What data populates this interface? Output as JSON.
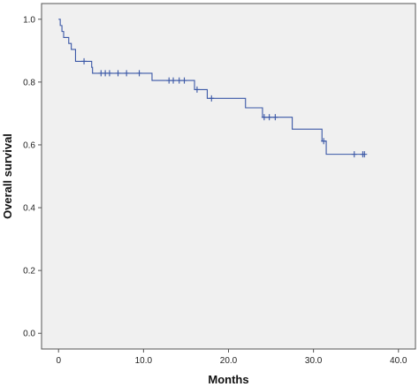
{
  "chart_data": {
    "type": "line",
    "step": true,
    "xlabel": "Months",
    "ylabel": "Overall survival",
    "xlim": [
      -2,
      42
    ],
    "ylim": [
      -0.05,
      1.05
    ],
    "xticks": [
      0,
      10,
      20,
      30,
      40
    ],
    "xtick_labels": [
      "0",
      "10.0",
      "20.0",
      "30.0",
      "40.0"
    ],
    "yticks": [
      0,
      0.2,
      0.4,
      0.6,
      0.8,
      1.0
    ],
    "ytick_labels": [
      "0.0",
      "0.2",
      "0.4",
      "0.6",
      "0.8",
      "1.0"
    ],
    "grid": false,
    "background_color": "#f0f0f0",
    "line_color": "#3a57a6",
    "series": [
      {
        "steps": [
          [
            0.0,
            1.0
          ],
          [
            0.2,
            0.98
          ],
          [
            0.4,
            0.961
          ],
          [
            0.6,
            0.942
          ],
          [
            1.2,
            0.923
          ],
          [
            1.5,
            0.904
          ],
          [
            2.0,
            0.866
          ],
          [
            3.9,
            0.847
          ],
          [
            4.0,
            0.828
          ],
          [
            11.0,
            0.805
          ],
          [
            16.0,
            0.776
          ],
          [
            17.5,
            0.748
          ],
          [
            22.0,
            0.718
          ],
          [
            24.0,
            0.688
          ],
          [
            27.5,
            0.65
          ],
          [
            31.0,
            0.612
          ],
          [
            31.5,
            0.57
          ],
          [
            36.0,
            0.57
          ]
        ],
        "censored": [
          [
            3.0,
            0.866
          ],
          [
            5.0,
            0.828
          ],
          [
            5.5,
            0.828
          ],
          [
            6.0,
            0.828
          ],
          [
            7.0,
            0.828
          ],
          [
            8.0,
            0.828
          ],
          [
            9.5,
            0.828
          ],
          [
            13.0,
            0.805
          ],
          [
            13.5,
            0.805
          ],
          [
            14.2,
            0.805
          ],
          [
            14.8,
            0.805
          ],
          [
            16.3,
            0.776
          ],
          [
            18.0,
            0.748
          ],
          [
            24.2,
            0.688
          ],
          [
            24.8,
            0.688
          ],
          [
            25.5,
            0.688
          ],
          [
            31.2,
            0.612
          ],
          [
            34.8,
            0.57
          ],
          [
            35.8,
            0.57
          ],
          [
            36.0,
            0.57
          ]
        ]
      }
    ]
  }
}
